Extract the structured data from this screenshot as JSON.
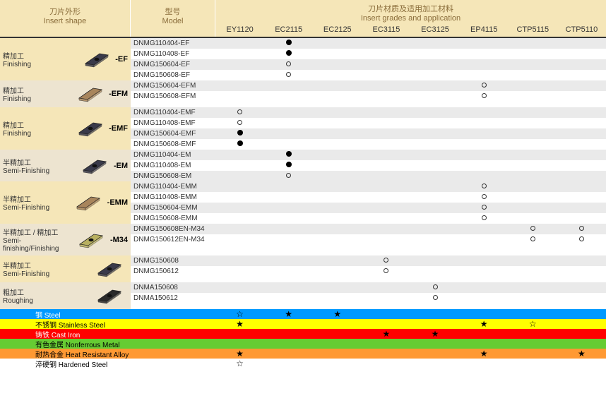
{
  "header": {
    "shape_cn": "刀片外形",
    "shape_en": "Insert shape",
    "model_cn": "型号",
    "model_en": "Model",
    "grades_cn": "刀片材质及适用加工材料",
    "grades_en": "Insert grades and application",
    "grade_cols": [
      "EY1120",
      "EC2115",
      "EC2125",
      "EC3115",
      "EC3125",
      "EP4115",
      "CTP5115",
      "CTP5110"
    ]
  },
  "groups": [
    {
      "bg": "bg-a",
      "label_cn": "精加工",
      "label_en": "Finishing",
      "suffix": "-EF",
      "insert_color": "#3a3a4a",
      "insert_hole": true,
      "rows": [
        {
          "model": "DNMG110404-EF",
          "marks": [
            "",
            "filled",
            "",
            "",
            "",
            "",
            "",
            ""
          ]
        },
        {
          "model": "DNMG110408-EF",
          "marks": [
            "",
            "filled",
            "",
            "",
            "",
            "",
            "",
            ""
          ]
        },
        {
          "model": "DNMG150604-EF",
          "marks": [
            "",
            "open",
            "",
            "",
            "",
            "",
            "",
            ""
          ]
        },
        {
          "model": "DNMG150608-EF",
          "marks": [
            "",
            "open",
            "",
            "",
            "",
            "",
            "",
            ""
          ]
        }
      ]
    },
    {
      "bg": "bg-b",
      "label_cn": "精加工",
      "label_en": "Finishing",
      "suffix": "-EFM",
      "insert_color": "#a8855c",
      "insert_hole": false,
      "rows": [
        {
          "model": "DNMG150604-EFM",
          "marks": [
            "",
            "",
            "",
            "",
            "",
            "open",
            "",
            ""
          ]
        },
        {
          "model": "DNMG150608-EFM",
          "marks": [
            "",
            "",
            "",
            "",
            "",
            "open",
            "",
            ""
          ]
        }
      ]
    },
    {
      "bg": "bg-a",
      "label_cn": "精加工",
      "label_en": "Finishing",
      "suffix": "-EMF",
      "insert_color": "#3a3a4a",
      "insert_hole": true,
      "rows": [
        {
          "model": "DNMG110404-EMF",
          "marks": [
            "open",
            "",
            "",
            "",
            "",
            "",
            "",
            ""
          ]
        },
        {
          "model": "DNMG110408-EMF",
          "marks": [
            "open",
            "",
            "",
            "",
            "",
            "",
            "",
            ""
          ]
        },
        {
          "model": "DNMG150604-EMF",
          "marks": [
            "filled",
            "",
            "",
            "",
            "",
            "",
            "",
            ""
          ]
        },
        {
          "model": "DNMG150608-EMF",
          "marks": [
            "filled",
            "",
            "",
            "",
            "",
            "",
            "",
            ""
          ]
        }
      ]
    },
    {
      "bg": "bg-b",
      "label_cn": "半精加工",
      "label_en": "Semi-Finishing",
      "suffix": "-EM",
      "insert_color": "#3a3a4a",
      "insert_hole": true,
      "rows": [
        {
          "model": "DNMG110404-EM",
          "marks": [
            "",
            "filled",
            "",
            "",
            "",
            "",
            "",
            ""
          ]
        },
        {
          "model": "DNMG110408-EM",
          "marks": [
            "",
            "filled",
            "",
            "",
            "",
            "",
            "",
            ""
          ]
        },
        {
          "model": "DNMG150608-EM",
          "marks": [
            "",
            "open",
            "",
            "",
            "",
            "",
            "",
            ""
          ]
        }
      ]
    },
    {
      "bg": "bg-a",
      "label_cn": "半精加工",
      "label_en": "Semi-Finishing",
      "suffix": "-EMM",
      "insert_color": "#a8855c",
      "insert_hole": false,
      "rows": [
        {
          "model": "DNMG110404-EMM",
          "marks": [
            "",
            "",
            "",
            "",
            "",
            "open",
            "",
            ""
          ]
        },
        {
          "model": "DNMG110408-EMM",
          "marks": [
            "",
            "",
            "",
            "",
            "",
            "open",
            "",
            ""
          ]
        },
        {
          "model": "DNMG150604-EMM",
          "marks": [
            "",
            "",
            "",
            "",
            "",
            "open",
            "",
            ""
          ]
        },
        {
          "model": "DNMG150608-EMM",
          "marks": [
            "",
            "",
            "",
            "",
            "",
            "open",
            "",
            ""
          ]
        }
      ]
    },
    {
      "bg": "bg-b",
      "label_cn": "半精加工 / 精加工",
      "label_en": "Semi-finishing/Finishing",
      "suffix": "-M34",
      "insert_color": "#b8b060",
      "insert_hole": true,
      "rows": [
        {
          "model": "DNMG150608EN-M34",
          "marks": [
            "",
            "",
            "",
            "",
            "",
            "",
            "open",
            "open"
          ]
        },
        {
          "model": "DNMG150612EN-M34",
          "marks": [
            "",
            "",
            "",
            "",
            "",
            "",
            "open",
            "open"
          ]
        }
      ]
    },
    {
      "bg": "bg-a",
      "label_cn": "半精加工",
      "label_en": "Semi-Finishing",
      "suffix": "",
      "insert_color": "#3a3a4a",
      "insert_hole": true,
      "rows": [
        {
          "model": "DNMG150608",
          "marks": [
            "",
            "",
            "",
            "open",
            "",
            "",
            "",
            ""
          ]
        },
        {
          "model": "DNMG150612",
          "marks": [
            "",
            "",
            "",
            "open",
            "",
            "",
            "",
            ""
          ]
        }
      ]
    },
    {
      "bg": "bg-b",
      "label_cn": "粗加工",
      "label_en": "Roughing",
      "suffix": "",
      "insert_color": "#2a2a2a",
      "insert_hole": true,
      "rows": [
        {
          "model": "DNMA150608",
          "marks": [
            "",
            "",
            "",
            "",
            "open",
            "",
            "",
            ""
          ]
        },
        {
          "model": "DNMA150612",
          "marks": [
            "",
            "",
            "",
            "",
            "open",
            "",
            "",
            ""
          ]
        }
      ]
    }
  ],
  "footer": [
    {
      "bg": "bg-blue",
      "label": "钢 Steel",
      "stars": [
        "open",
        "filled",
        "filled",
        "",
        "",
        "",
        "",
        ""
      ]
    },
    {
      "bg": "bg-yellow",
      "label": "不锈钢 Stainless Steel",
      "stars": [
        "filled",
        "",
        "",
        "",
        "",
        "filled",
        "open",
        ""
      ]
    },
    {
      "bg": "bg-red",
      "label": "铸铁 Cast Iron",
      "stars": [
        "",
        "",
        "",
        "filled",
        "filled",
        "",
        "",
        ""
      ]
    },
    {
      "bg": "bg-green",
      "label": "有色金属 Nonferrous Metal",
      "stars": [
        "",
        "",
        "",
        "",
        "",
        "",
        "",
        ""
      ]
    },
    {
      "bg": "bg-orange",
      "label": "耐热合金 Heat Resistant Alloy",
      "stars": [
        "filled",
        "",
        "",
        "",
        "",
        "filled",
        "",
        "filled"
      ]
    },
    {
      "bg": "bg-white",
      "label": "淬硬钢 Hardened Steel",
      "stars": [
        "open",
        "",
        "",
        "",
        "",
        "",
        "",
        ""
      ]
    }
  ]
}
